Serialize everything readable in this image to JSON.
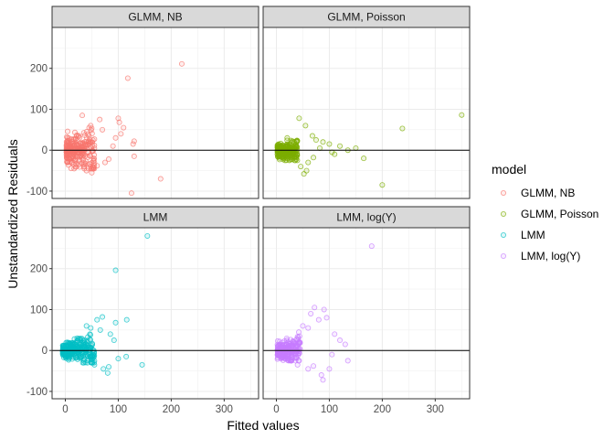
{
  "chart_data": {
    "type": "scatter",
    "title": "",
    "xlabel": "Fitted values",
    "ylabel": "Unstandardized Residuals",
    "xlim": [
      -25,
      365
    ],
    "ylim": [
      -118,
      300
    ],
    "x_ticks": [
      0,
      100,
      200,
      300
    ],
    "y_ticks": [
      -100,
      0,
      100,
      200
    ],
    "x_tick_labels": [
      "0",
      "100",
      "200",
      "300"
    ],
    "y_tick_labels": [
      "-100",
      "0",
      "100",
      "200"
    ],
    "reference_line_y": 0,
    "grid": true,
    "facets": [
      {
        "label": "GLMM, NB",
        "model": "GLMM, NB",
        "color": "#F8766D",
        "cluster": {
          "x_range": [
            2,
            55
          ],
          "y_range": [
            -45,
            60
          ],
          "density": 260
        },
        "outliers": [
          [
            220,
            211
          ],
          [
            118,
            176
          ],
          [
            32,
            85
          ],
          [
            65,
            75
          ],
          [
            100,
            78
          ],
          [
            102,
            68
          ],
          [
            45,
            55
          ],
          [
            48,
            60
          ],
          [
            130,
            22
          ],
          [
            128,
            15
          ],
          [
            130,
            -15
          ],
          [
            180,
            -70
          ],
          [
            125,
            -105
          ],
          [
            82,
            -22
          ],
          [
            75,
            -30
          ],
          [
            60,
            -38
          ],
          [
            40,
            -50
          ],
          [
            50,
            -55
          ],
          [
            35,
            -40
          ],
          [
            90,
            10
          ],
          [
            95,
            30
          ],
          [
            70,
            50
          ],
          [
            105,
            40
          ],
          [
            110,
            55
          ]
        ]
      },
      {
        "label": "GLMM, Poisson",
        "model": "GLMM, Poisson",
        "color": "#7CAE00",
        "cluster": {
          "x_range": [
            2,
            40
          ],
          "y_range": [
            -25,
            35
          ],
          "density": 260
        },
        "outliers": [
          [
            350,
            86
          ],
          [
            238,
            53
          ],
          [
            43,
            78
          ],
          [
            55,
            60
          ],
          [
            68,
            35
          ],
          [
            75,
            25
          ],
          [
            88,
            20
          ],
          [
            100,
            15
          ],
          [
            120,
            10
          ],
          [
            150,
            5
          ],
          [
            165,
            -20
          ],
          [
            200,
            -85
          ],
          [
            105,
            -5
          ],
          [
            52,
            -58
          ],
          [
            57,
            -50
          ],
          [
            60,
            -30
          ],
          [
            70,
            -18
          ],
          [
            30,
            -22
          ],
          [
            46,
            -40
          ],
          [
            82,
            5
          ],
          [
            110,
            -10
          ],
          [
            135,
            0
          ]
        ]
      },
      {
        "label": "LMM",
        "model": "LMM",
        "color": "#00BFC4",
        "cluster": {
          "x_range": [
            -5,
            55
          ],
          "y_range": [
            -30,
            40
          ],
          "density": 280
        },
        "outliers": [
          [
            155,
            280
          ],
          [
            95,
            196
          ],
          [
            116,
            75
          ],
          [
            95,
            68
          ],
          [
            70,
            82
          ],
          [
            60,
            75
          ],
          [
            40,
            60
          ],
          [
            85,
            40
          ],
          [
            92,
            25
          ],
          [
            100,
            -20
          ],
          [
            115,
            -15
          ],
          [
            145,
            -35
          ],
          [
            80,
            -55
          ],
          [
            72,
            -45
          ],
          [
            82,
            -40
          ],
          [
            55,
            -35
          ],
          [
            48,
            55
          ],
          [
            66,
            50
          ]
        ]
      },
      {
        "label": "LMM, log(Y)",
        "model": "LMM, log(Y)",
        "color": "#C77CFF",
        "cluster": {
          "x_range": [
            2,
            45
          ],
          "y_range": [
            -25,
            45
          ],
          "density": 260
        },
        "outliers": [
          [
            180,
            255
          ],
          [
            72,
            105
          ],
          [
            90,
            100
          ],
          [
            95,
            80
          ],
          [
            80,
            75
          ],
          [
            50,
            60
          ],
          [
            60,
            55
          ],
          [
            110,
            40
          ],
          [
            120,
            25
          ],
          [
            135,
            -25
          ],
          [
            85,
            -60
          ],
          [
            88,
            -72
          ],
          [
            100,
            -45
          ],
          [
            70,
            -38
          ],
          [
            60,
            -45
          ],
          [
            40,
            -35
          ],
          [
            130,
            15
          ],
          [
            105,
            -10
          ],
          [
            65,
            90
          ]
        ]
      }
    ],
    "legend": {
      "title": "model",
      "placement": "right",
      "entries": [
        {
          "label": "GLMM, NB",
          "color": "#F8766D"
        },
        {
          "label": "GLMM, Poisson",
          "color": "#7CAE00"
        },
        {
          "label": "LMM",
          "color": "#00BFC4"
        },
        {
          "label": "LMM, log(Y)",
          "color": "#C77CFF"
        }
      ]
    }
  }
}
